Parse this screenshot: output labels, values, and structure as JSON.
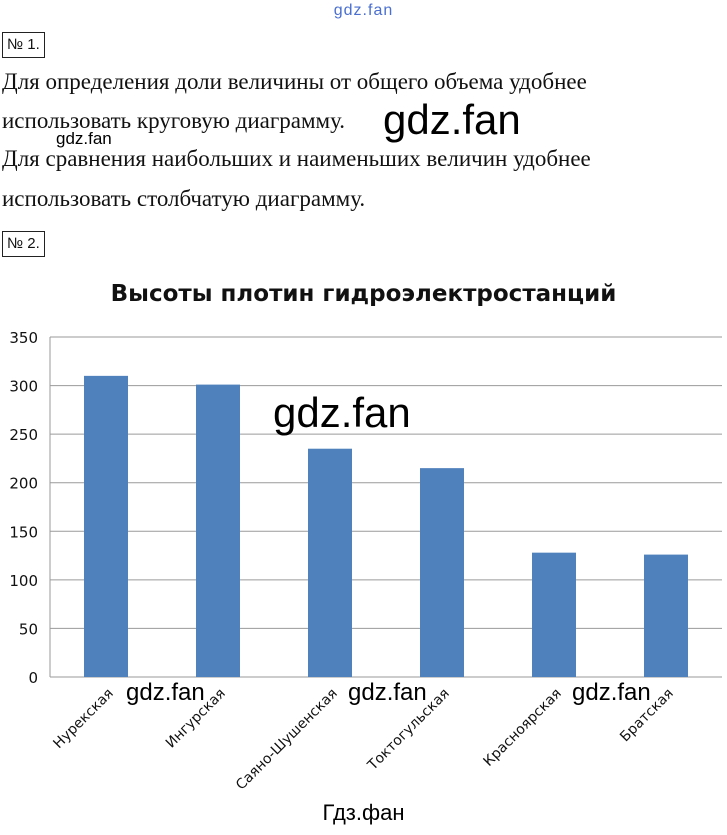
{
  "watermarks": {
    "top": "gdz.fan",
    "big_text": "gdz.fan",
    "small_text": "gdz.fan",
    "chart_big": "gdz.fan",
    "axis_1": "gdz.fan",
    "axis_2": "gdz.fan",
    "axis_3": "gdz.fan"
  },
  "task1": {
    "number": "№ 1.",
    "lines": [
      "Для определения доли величины от общего объема удобнее",
      "использовать круговую диаграмму.",
      "Для сравнения наибольших и наименьших величин удобнее",
      "использовать столбчатую диаграмму."
    ]
  },
  "task2": {
    "number": "№ 2."
  },
  "chart_data": {
    "type": "bar",
    "title": "Высоты плотин гидроэлектростанций",
    "categories": [
      "Нурекская",
      "Ингурская",
      "Саяно-Шушенская",
      "Токтогульская",
      "Красноярская",
      "Братская"
    ],
    "values": [
      310,
      301,
      235,
      215,
      128,
      126
    ],
    "ylim": [
      0,
      350
    ],
    "yticks": [
      "0",
      "50",
      "100",
      "150",
      "200",
      "250",
      "300",
      "350"
    ],
    "grid": true,
    "bar_color": "#4f81bd"
  },
  "footer": "Гдз.фан"
}
